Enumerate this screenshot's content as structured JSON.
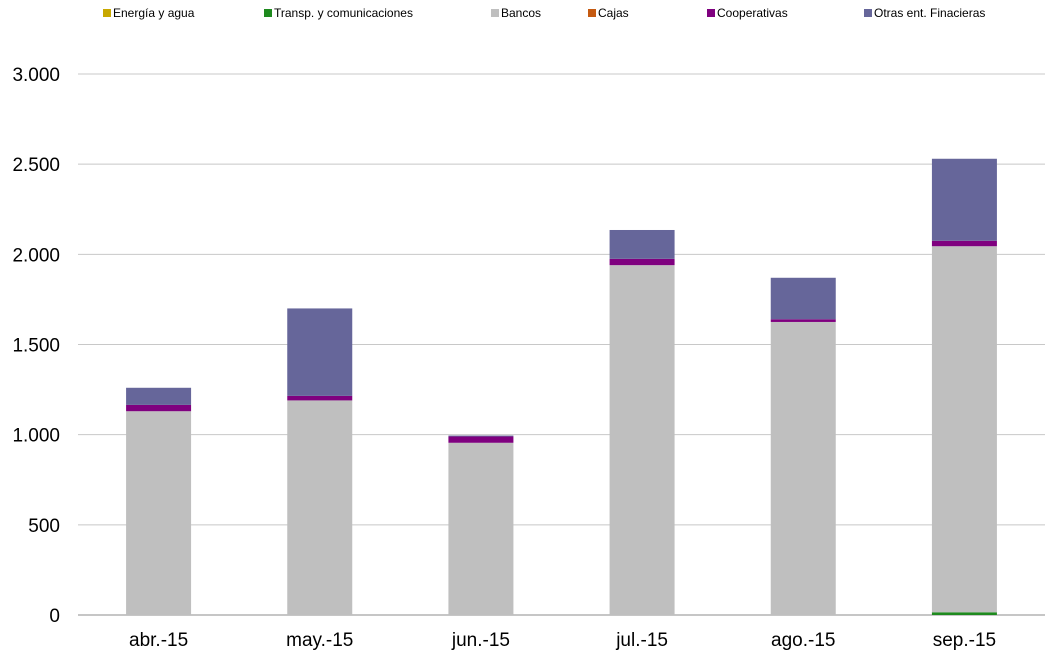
{
  "chart_data": {
    "type": "bar",
    "stacked": true,
    "categories": [
      "abr.-15",
      "may.-15",
      "jun.-15",
      "jul.-15",
      "ago.-15",
      "sep.-15"
    ],
    "series": [
      {
        "name": "Energía y agua",
        "color": "#c8a800",
        "values": [
          0,
          0,
          0,
          0,
          0,
          0
        ]
      },
      {
        "name": "Transp. y comunicaciones",
        "color": "#1e8a1e",
        "values": [
          0,
          0,
          0,
          0,
          0,
          15
        ]
      },
      {
        "name": "Bancos",
        "color": "#bfbfbf",
        "values": [
          1130,
          1190,
          955,
          1940,
          1625,
          2030
        ]
      },
      {
        "name": "Cajas",
        "color": "#c55a11",
        "values": [
          0,
          0,
          0,
          0,
          0,
          0
        ]
      },
      {
        "name": "Cooperativas",
        "color": "#7f007f",
        "values": [
          35,
          25,
          35,
          35,
          15,
          30
        ]
      },
      {
        "name": "Otras ent. Finacieras",
        "color": "#66669a",
        "values": [
          95,
          485,
          5,
          160,
          230,
          455
        ]
      }
    ],
    "ylim": [
      0,
      3000
    ],
    "yticks": [
      0,
      500,
      1000,
      1500,
      2000,
      2500,
      3000
    ],
    "ytick_labels": [
      "0",
      "500",
      "1.000",
      "1.500",
      "2.000",
      "2.500",
      "3.000"
    ],
    "grid": true,
    "legend_position": "top",
    "title": "",
    "xlabel": "",
    "ylabel": ""
  }
}
